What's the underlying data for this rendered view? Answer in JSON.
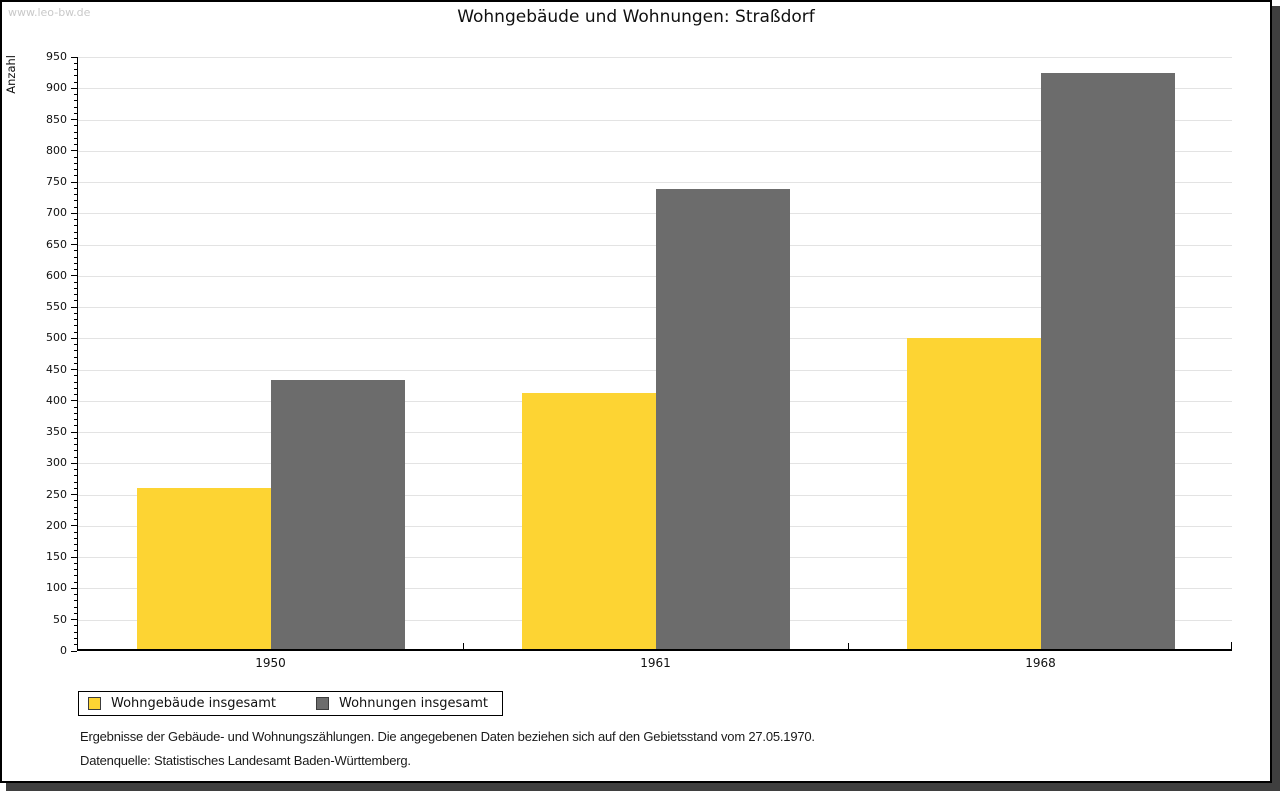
{
  "watermark": "www.leo-bw.de",
  "title": "Wohngebäude und Wohnungen: Straßdorf",
  "chart_data": {
    "type": "bar",
    "title": "Wohngebäude und Wohnungen: Straßdorf",
    "xlabel": "",
    "ylabel": "Anzahl",
    "categories": [
      "1950",
      "1961",
      "1968"
    ],
    "series": [
      {
        "name": "Wohngebäude insgesamt",
        "color": "#FDD433",
        "values": [
          258,
          410,
          497
        ]
      },
      {
        "name": "Wohnungen insgesamt",
        "color": "#6C6C6C",
        "values": [
          430,
          736,
          922
        ]
      }
    ],
    "ylim": [
      0,
      950
    ],
    "ytick_step": 50,
    "minor_tick_step": 10,
    "grid": true,
    "grid_color": "#e3e3e3",
    "legend_position": "bottom-left"
  },
  "footnotes": [
    "Ergebnisse der Gebäude- und Wohnungszählungen. Die angegebenen Daten beziehen sich auf den Gebietsstand vom 27.05.1970.",
    "Datenquelle: Statistisches Landesamt Baden-Württemberg."
  ]
}
